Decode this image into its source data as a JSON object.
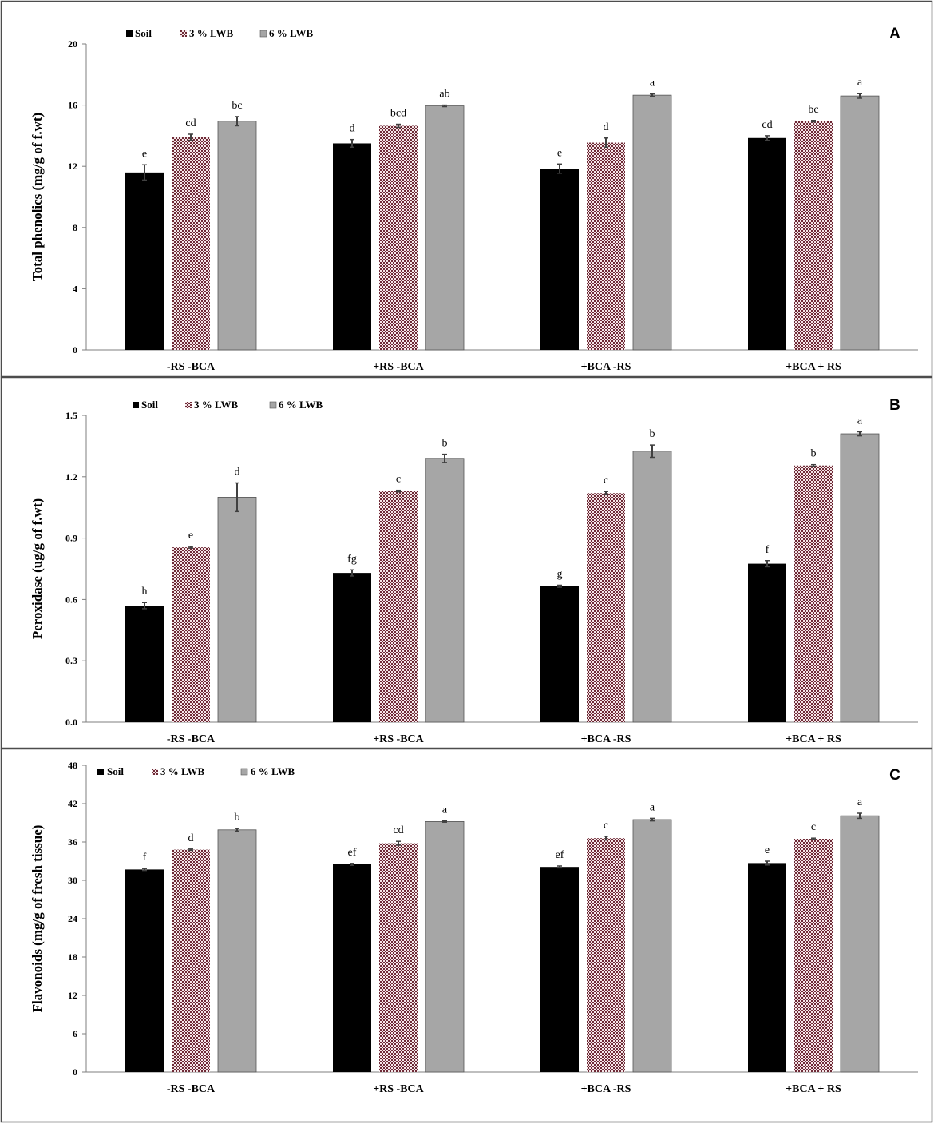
{
  "chart_data": [
    {
      "type": "bar",
      "panel_label": "A",
      "title": "",
      "xlabel": "",
      "ylabel": "Total phenolics (mg/g of f.wt)",
      "ylim": [
        0,
        20
      ],
      "yticks": [
        "0",
        "4",
        "8",
        "12",
        "16",
        "20"
      ],
      "categories": [
        "-RS  -BCA",
        "+RS -BCA",
        "+BCA -RS",
        "+BCA + RS"
      ],
      "legend_position": "top-left",
      "series": [
        {
          "name": "Soil",
          "values": [
            11.6,
            13.5,
            11.85,
            13.85
          ],
          "errors": [
            0.5,
            0.25,
            0.3,
            0.15
          ],
          "letters": [
            "e",
            "d",
            "e",
            "cd"
          ]
        },
        {
          "name": "3 % LWB",
          "values": [
            13.9,
            14.65,
            13.55,
            14.95
          ],
          "errors": [
            0.2,
            0.1,
            0.3,
            0.05
          ],
          "letters": [
            "cd",
            "bcd",
            "d",
            "bc"
          ]
        },
        {
          "name": "6 % LWB",
          "values": [
            14.95,
            15.95,
            16.65,
            16.6
          ],
          "errors": [
            0.3,
            0.05,
            0.08,
            0.15
          ],
          "letters": [
            "bc",
            "ab",
            "a",
            "a"
          ]
        }
      ]
    },
    {
      "type": "bar",
      "panel_label": "B",
      "title": "",
      "xlabel": "",
      "ylabel": "Peroxidase (ug/g of f.wt)",
      "ylim": [
        0,
        1.5
      ],
      "yticks": [
        "0.0",
        "0.3",
        "0.6",
        "0.9",
        "1.2",
        "1.5"
      ],
      "categories": [
        "-RS  -BCA",
        "+RS -BCA",
        "+BCA -RS",
        "+BCA + RS"
      ],
      "legend_position": "top-left",
      "series": [
        {
          "name": "Soil",
          "values": [
            0.57,
            0.73,
            0.665,
            0.775
          ],
          "errors": [
            0.015,
            0.015,
            0.005,
            0.015
          ],
          "letters": [
            "h",
            "fg",
            "g",
            "f"
          ]
        },
        {
          "name": "3 % LWB",
          "values": [
            0.855,
            1.13,
            1.12,
            1.255
          ],
          "errors": [
            0.004,
            0.004,
            0.008,
            0.004
          ],
          "letters": [
            "e",
            "c",
            "c",
            "b"
          ]
        },
        {
          "name": "6 % LWB",
          "values": [
            1.1,
            1.29,
            1.325,
            1.41
          ],
          "errors": [
            0.07,
            0.02,
            0.03,
            0.01
          ],
          "letters": [
            "d",
            "b",
            "b",
            "a"
          ]
        }
      ]
    },
    {
      "type": "bar",
      "panel_label": "C",
      "title": "",
      "xlabel": "",
      "ylabel": "Flavonoids (mg/g of fresh tissue)",
      "ylim": [
        0,
        48
      ],
      "yticks": [
        "0",
        "6",
        "12",
        "18",
        "24",
        "30",
        "36",
        "42",
        "48"
      ],
      "categories": [
        "-RS  -BCA",
        "+RS -BCA",
        "+BCA -RS",
        "+BCA + RS"
      ],
      "legend_position": "top-left",
      "series": [
        {
          "name": "Soil",
          "values": [
            31.7,
            32.5,
            32.1,
            32.7
          ],
          "errors": [
            0.15,
            0.15,
            0.15,
            0.3
          ],
          "letters": [
            "f",
            "ef",
            "ef",
            "e"
          ]
        },
        {
          "name": "3 % LWB",
          "values": [
            34.8,
            35.8,
            36.6,
            36.5
          ],
          "errors": [
            0.1,
            0.3,
            0.3,
            0.1
          ],
          "letters": [
            "d",
            "cd",
            "c",
            "c"
          ]
        },
        {
          "name": "6 % LWB",
          "values": [
            37.9,
            39.2,
            39.5,
            40.1
          ],
          "errors": [
            0.2,
            0.1,
            0.2,
            0.4
          ],
          "letters": [
            "b",
            "a",
            "a",
            "a"
          ]
        }
      ]
    }
  ],
  "colors": {
    "soil": "#000000",
    "lwb3_base": "#f4e6e8",
    "lwb3_dot": "#6e2a36",
    "lwb6": "#a6a6a6",
    "axis": "#7f7f7f",
    "frame": "#4d4d4d",
    "error_bar": "#404040"
  }
}
